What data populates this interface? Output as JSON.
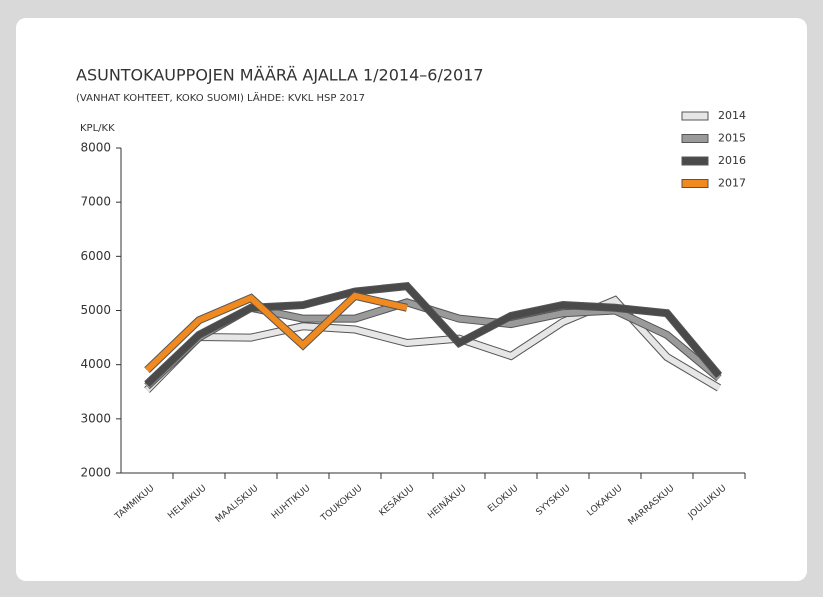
{
  "chart_data": {
    "type": "line",
    "title": "ASUNTOKAUPPOJEN MÄÄRÄ AJALLA 1/2014–6/2017",
    "subtitle": "(VANHAT KOHTEET, KOKO SUOMI) LÄHDE: KVKL HSP 2017",
    "y_label": "KPL/KK",
    "categories": [
      "TAMMIKUU",
      "HELMIKUU",
      "MAALISKUU",
      "HUHTIKUU",
      "TOUKOKUU",
      "KESÄKUU",
      "HEINÄKUU",
      "ELOKUU",
      "SYYSKUU",
      "LOKAKUU",
      "MARRASKUU",
      "JOULUKUU"
    ],
    "series": [
      {
        "name": "2014",
        "color": "#e6e6e6",
        "values": [
          3530,
          4510,
          4500,
          4710,
          4650,
          4400,
          4480,
          4160,
          4790,
          5190,
          4140,
          3570
        ]
      },
      {
        "name": "2015",
        "color": "#9a9a9a",
        "values": [
          3600,
          4500,
          5050,
          4850,
          4850,
          5150,
          4850,
          4750,
          4950,
          5000,
          4550,
          3750
        ]
      },
      {
        "name": "2016",
        "color": "#4a4a4a",
        "values": [
          3640,
          4550,
          5050,
          5100,
          5350,
          5450,
          4400,
          4900,
          5100,
          5050,
          4950,
          3800
        ]
      },
      {
        "name": "2017",
        "color": "#f08a1e",
        "values": [
          3900,
          4820,
          5230,
          4360,
          5270,
          5050,
          null,
          null,
          null,
          null,
          null,
          null
        ]
      }
    ],
    "ylim": [
      2000,
      8000
    ],
    "yticks": [
      2000,
      3000,
      4000,
      5000,
      6000,
      7000,
      8000
    ],
    "legend": "top-right"
  }
}
